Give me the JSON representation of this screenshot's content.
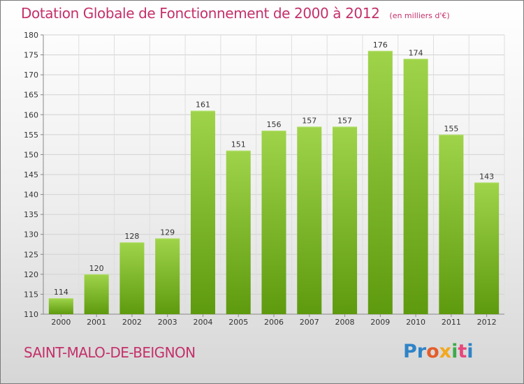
{
  "chart_data": {
    "type": "bar",
    "title": "Dotation Globale de Fonctionnement de 2000 à 2012",
    "unit_note": "(en milliers d'€)",
    "categories": [
      "2000",
      "2001",
      "2002",
      "2003",
      "2004",
      "2005",
      "2006",
      "2007",
      "2008",
      "2009",
      "2010",
      "2011",
      "2012"
    ],
    "values": [
      114,
      120,
      128,
      129,
      161,
      151,
      156,
      157,
      157,
      176,
      174,
      155,
      143
    ],
    "ylim": [
      110,
      180
    ],
    "yticks": [
      110,
      115,
      120,
      125,
      130,
      135,
      140,
      145,
      150,
      155,
      160,
      165,
      170,
      175,
      180
    ],
    "xlabel": "",
    "ylabel": "",
    "grid": true,
    "bar_color": "#7cbb1f"
  },
  "commune_name": "SAINT-MALO-DE-BEIGNON",
  "logo": {
    "text": "Proxiti",
    "letters": [
      "Pr",
      "o",
      "x",
      "i",
      "t",
      "i"
    ]
  }
}
